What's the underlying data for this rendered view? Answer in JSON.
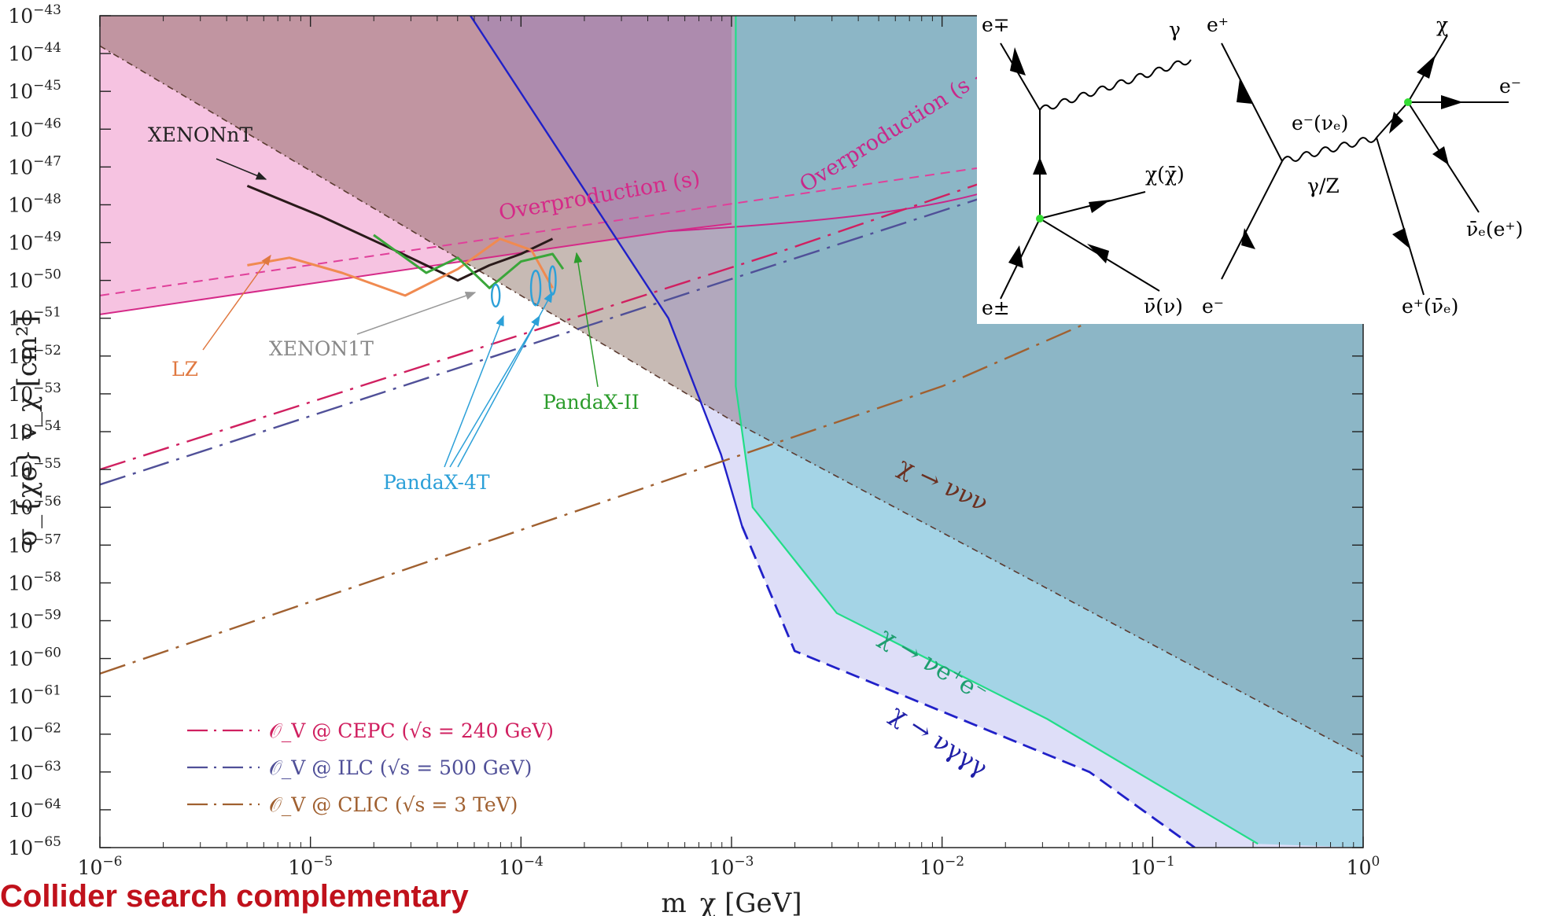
{
  "chart_data": {
    "type": "line",
    "xlabel": "m_χ [GeV]",
    "ylabel": "σ_{χe} v_χ [cm²]",
    "xscale": "log",
    "yscale": "log",
    "xlim": [
      1e-06,
      1
    ],
    "ylim": [
      1e-65,
      1e-43
    ],
    "x_ticks": [
      {
        "exp": "-6"
      },
      {
        "exp": "-5"
      },
      {
        "exp": "-4"
      },
      {
        "exp": "-3"
      },
      {
        "exp": "-2"
      },
      {
        "exp": "-1"
      },
      {
        "exp": "0"
      }
    ],
    "y_ticks": [
      {
        "exp": "-43"
      },
      {
        "exp": "-44"
      },
      {
        "exp": "-45"
      },
      {
        "exp": "-46"
      },
      {
        "exp": "-47"
      },
      {
        "exp": "-48"
      },
      {
        "exp": "-49"
      },
      {
        "exp": "-50"
      },
      {
        "exp": "-51"
      },
      {
        "exp": "-52"
      },
      {
        "exp": "-53"
      },
      {
        "exp": "-54"
      },
      {
        "exp": "-55"
      },
      {
        "exp": "-56"
      },
      {
        "exp": "-57"
      },
      {
        "exp": "-58"
      },
      {
        "exp": "-59"
      },
      {
        "exp": "-60"
      },
      {
        "exp": "-61"
      },
      {
        "exp": "-62"
      },
      {
        "exp": "-63"
      },
      {
        "exp": "-64"
      },
      {
        "exp": "-65"
      }
    ],
    "regions": [
      {
        "name": "Overproduction (s)",
        "color": "#f5b8dc",
        "boundary_log": [
          [
            -6,
            -50.9
          ],
          [
            -3.3,
            -48.7
          ],
          [
            -3.0,
            -48.5
          ]
        ]
      },
      {
        "name": "χ → ννν",
        "color": "#8c4a3a",
        "boundary_log": [
          [
            -6,
            -43.8
          ],
          [
            -3,
            -53.7
          ],
          [
            0,
            -62.6
          ]
        ]
      },
      {
        "name": "χ → νγγγ",
        "color": "#3a3ad8",
        "boundary_log": [
          [
            -4.24,
            -43
          ],
          [
            -3.3,
            -51
          ],
          [
            -3.05,
            -54.6
          ],
          [
            -2.95,
            -56.5
          ],
          [
            -2.7,
            -59.8
          ],
          [
            -1.3,
            -63
          ],
          [
            -0.8,
            -65
          ]
        ]
      },
      {
        "name": "χ → νe⁺e⁻",
        "color": "#33dd99",
        "boundary_log": [
          [
            -2.98,
            -43
          ],
          [
            -2.98,
            -52.8
          ],
          [
            -2.9,
            -56
          ],
          [
            -2.5,
            -58.8
          ],
          [
            -1.5,
            -61.6
          ],
          [
            -0.5,
            -64.9
          ]
        ]
      }
    ],
    "series": [
      {
        "name": "XENONnT",
        "color": "#2a1a1a",
        "points_log": [
          [
            -5.3,
            -47.5
          ],
          [
            -4.95,
            -48.3
          ],
          [
            -4.6,
            -49.2
          ],
          [
            -4.3,
            -50.0
          ],
          [
            -4.15,
            -49.6
          ],
          [
            -4.0,
            -49.3
          ],
          [
            -3.85,
            -48.9
          ]
        ]
      },
      {
        "name": "LZ",
        "color": "#f08a50",
        "points_log": [
          [
            -5.3,
            -49.6
          ],
          [
            -5.1,
            -49.4
          ],
          [
            -4.85,
            -49.8
          ],
          [
            -4.55,
            -50.4
          ],
          [
            -4.3,
            -49.7
          ],
          [
            -4.1,
            -48.9
          ],
          [
            -3.95,
            -49.2
          ],
          [
            -3.85,
            -50.2
          ]
        ]
      },
      {
        "name": "PandaX-II",
        "color": "#3aa63a",
        "points_log": [
          [
            -4.7,
            -48.8
          ],
          [
            -4.45,
            -49.8
          ],
          [
            -4.3,
            -49.4
          ],
          [
            -4.15,
            -50.2
          ],
          [
            -4.0,
            -49.5
          ],
          [
            -3.85,
            -49.3
          ],
          [
            -3.8,
            -49.7
          ]
        ]
      },
      {
        "name": "CEPC",
        "color": "#d02060",
        "points_log": [
          [
            -6,
            -55.0
          ],
          [
            -2.8,
            -49.3
          ],
          [
            -1.8,
            -47.4
          ],
          [
            -1.3,
            -46.8
          ]
        ]
      },
      {
        "name": "ILC",
        "color": "#505098",
        "points_log": [
          [
            -6,
            -55.4
          ],
          [
            -2.8,
            -49.6
          ],
          [
            -1.8,
            -47.8
          ],
          [
            -1.3,
            -47.2
          ]
        ]
      },
      {
        "name": "CLIC",
        "color": "#a06030",
        "points_log": [
          [
            -6,
            -60.4
          ],
          [
            -2,
            -52.8
          ],
          [
            -1.3,
            -51.1
          ]
        ]
      }
    ],
    "annotations": [
      {
        "text": "XENONnT",
        "color": "#222222"
      },
      {
        "text": "LZ",
        "color": "#e07840"
      },
      {
        "text": "XENON1T",
        "color": "#888888"
      },
      {
        "text": "PandaX-II",
        "color": "#2c9c2c"
      },
      {
        "text": "PandaX-4T",
        "color": "#2ca0d8"
      },
      {
        "text": "Overproduction (s)",
        "color": "#d52a88"
      },
      {
        "text": "Overproduction (s + t)",
        "color": "#c8288a"
      },
      {
        "text": "χ → ννν",
        "color": "#6b3020"
      },
      {
        "text": "χ → νe⁺e⁻",
        "color": "#1e9e70"
      },
      {
        "text": "χ → νγγγ",
        "color": "#2020a8"
      }
    ],
    "legend": {
      "placement": "bottom-left",
      "entries": [
        {
          "label": "𝒪_V @ CEPC (√s = 240 GeV)",
          "color": "#d02060"
        },
        {
          "label": "𝒪_V @ ILC (√s = 500 GeV)",
          "color": "#505098"
        },
        {
          "label": "𝒪_V @ CLIC (√s = 3 TeV)",
          "color": "#a06030"
        }
      ]
    },
    "inset_diagrams": {
      "placement": "top-right",
      "diagram1_labels": [
        "e∓",
        "γ",
        "χ(χ̄)",
        "e±",
        "ν̄(ν)"
      ],
      "diagram2_labels": [
        "e⁺",
        "e⁻",
        "γ/Z",
        "e⁻(νₑ)",
        "χ",
        "e⁻",
        "ν̄ₑ(e⁺)",
        "e⁺(ν̄ₑ)"
      ]
    }
  },
  "footer": {
    "text": "Collider search complementary"
  }
}
